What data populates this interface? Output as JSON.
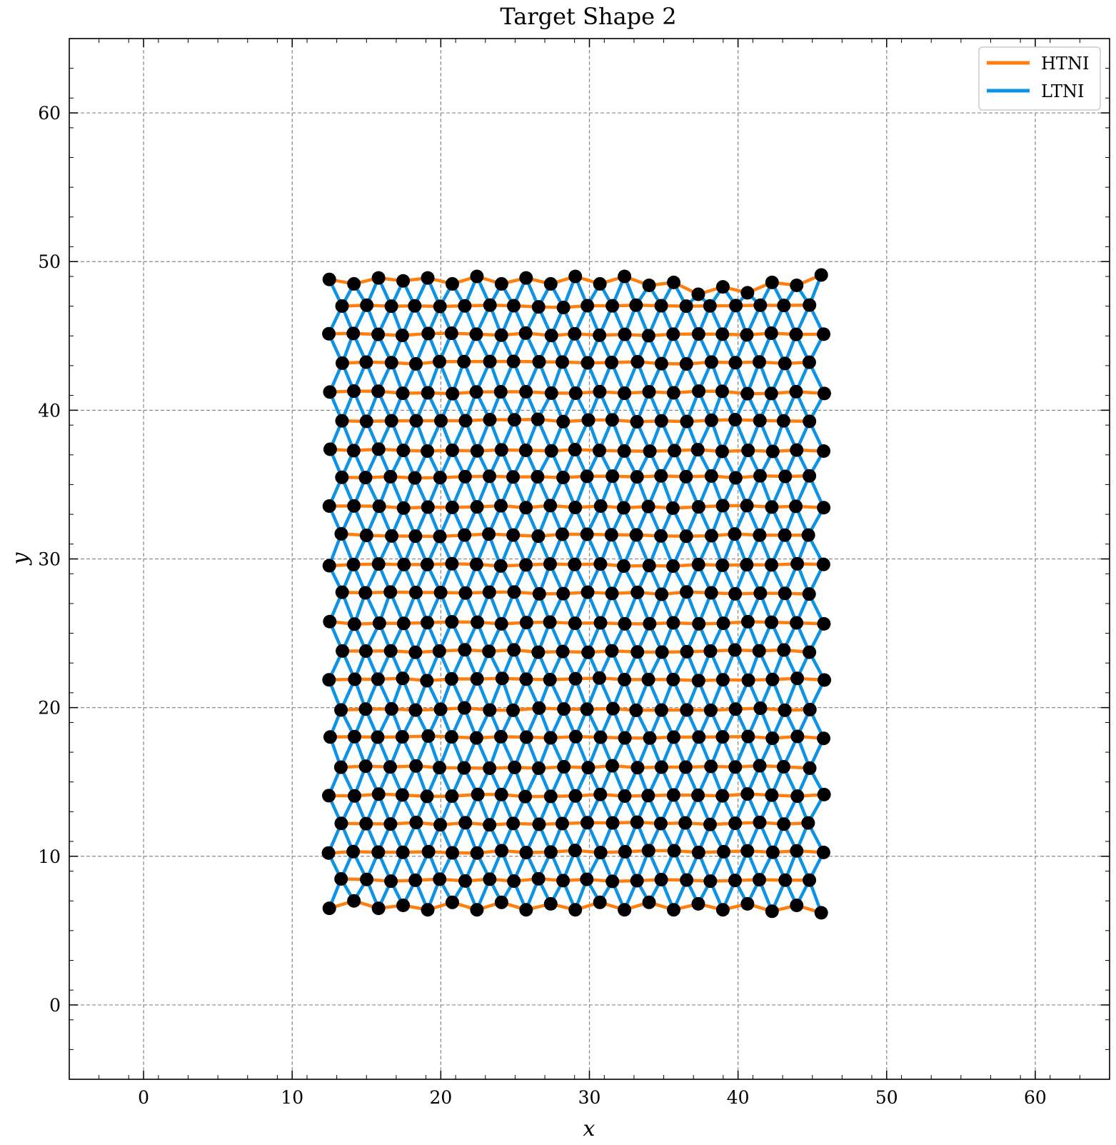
{
  "chart_data": {
    "type": "scatter",
    "title": "Target Shape 2",
    "xlabel": "x",
    "ylabel": "y",
    "xlim": [
      -5,
      65
    ],
    "ylim": [
      -5,
      65
    ],
    "xticks": [
      0,
      10,
      20,
      30,
      40,
      50,
      60
    ],
    "yticks": [
      0,
      10,
      20,
      30,
      40,
      50,
      60
    ],
    "xtick_labels": [
      "0",
      "10",
      "20",
      "30",
      "40",
      "50",
      "60"
    ],
    "ytick_labels": [
      "0",
      "10",
      "20",
      "30",
      "40",
      "50",
      "60"
    ],
    "grid": true,
    "legend_position": "top-right",
    "series": [
      {
        "name": "HTNI",
        "color": "#ff7f0e",
        "role": "horizontal edges between nodes of the same row"
      },
      {
        "name": "LTNI",
        "color": "#0c93e6",
        "role": "diagonal edges between nodes of adjacent rows"
      }
    ],
    "node_color": "#000000",
    "lattice": {
      "columns": 20,
      "x_start": 12.5,
      "x_end": 45.6,
      "odd_row_offset": 0.83,
      "row_y": [
        6.5,
        8.4,
        10.3,
        12.2,
        14.1,
        16.0,
        18.0,
        19.9,
        21.9,
        23.8,
        25.7,
        27.7,
        29.6,
        31.6,
        33.5,
        35.5,
        37.3,
        39.3,
        41.2,
        43.2,
        45.1,
        47.0,
        48.8
      ],
      "bottom_row_y": [
        6.5,
        7.0,
        6.5,
        6.7,
        6.4,
        6.9,
        6.4,
        6.9,
        6.4,
        6.8,
        6.4,
        6.9,
        6.4,
        6.9,
        6.4,
        6.8,
        6.4,
        6.8,
        6.3,
        6.7,
        6.2
      ],
      "top_row_y": [
        48.8,
        48.5,
        48.9,
        48.7,
        48.9,
        48.5,
        49.0,
        48.5,
        48.9,
        48.5,
        49.0,
        48.5,
        49.0,
        48.4,
        48.6,
        47.8,
        48.3,
        47.9,
        48.6,
        48.4,
        49.1
      ]
    }
  }
}
